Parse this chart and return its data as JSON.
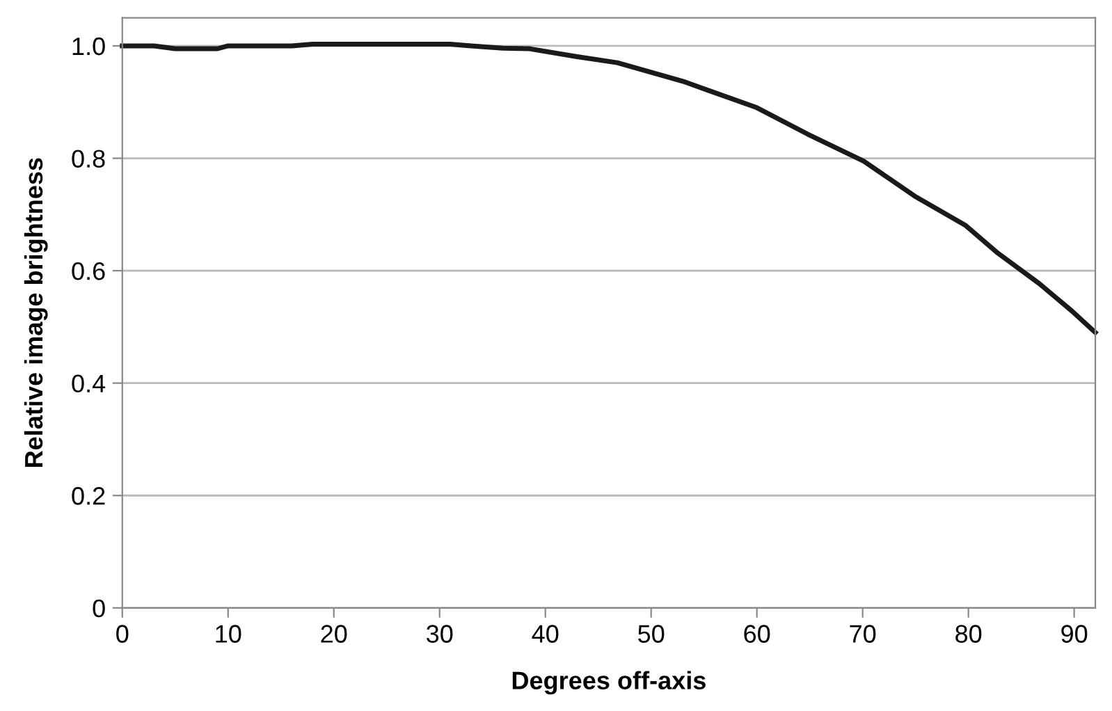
{
  "chart_data": {
    "type": "line",
    "xlabel": "Degrees off-axis",
    "ylabel": "Relative image brightness",
    "xlim": [
      0,
      92
    ],
    "ylim": [
      0,
      1.05
    ],
    "xticks": [
      0,
      10,
      20,
      30,
      40,
      50,
      60,
      70,
      80,
      90
    ],
    "yticks": [
      0,
      {
        "value": 0.2,
        "label": "0.2"
      },
      {
        "value": 0.4,
        "label": "0.4"
      },
      {
        "value": 0.6,
        "label": "0.6"
      },
      {
        "value": 0.8,
        "label": "0.8"
      },
      {
        "value": 1.0,
        "label": "1.0"
      }
    ],
    "grid": "y",
    "legend": false,
    "marker": "none",
    "line_style": "solid",
    "x": [
      0,
      3,
      5,
      9,
      10,
      16,
      18,
      31,
      33,
      36,
      38.5,
      42.9,
      46.8,
      53,
      60,
      64.8,
      70.1,
      74.9,
      79.7,
      82.8,
      86.7,
      89.8,
      92
    ],
    "series": [
      {
        "color": "#1a1a1a",
        "values": [
          1.0,
          1.0,
          0.995,
          0.995,
          1.0,
          1.0,
          1.003,
          1.003,
          1.0,
          0.996,
          0.995,
          0.981,
          0.97,
          0.937,
          0.89,
          0.843,
          0.795,
          0.733,
          0.681,
          0.631,
          0.577,
          0.528,
          0.49
        ]
      }
    ]
  }
}
